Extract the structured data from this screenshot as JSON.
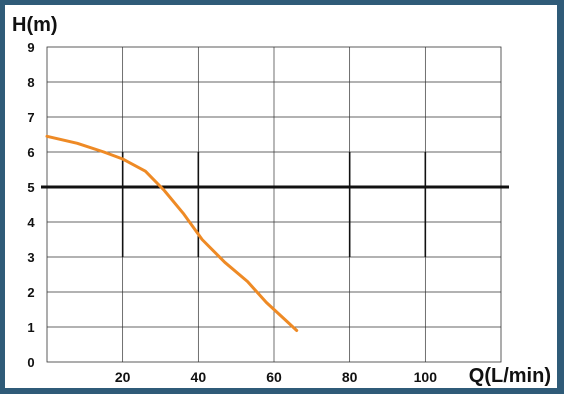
{
  "chart_data": {
    "type": "line",
    "title": "",
    "xlabel": "Q(L/min)",
    "ylabel": "H(m)",
    "xlim": [
      0,
      120
    ],
    "ylim": [
      0,
      9
    ],
    "x_ticks": [
      20,
      40,
      60,
      80,
      100
    ],
    "y_ticks": [
      0,
      1,
      2,
      3,
      4,
      5,
      6,
      7,
      8,
      9
    ],
    "grid": true,
    "legend": "none",
    "series": [
      {
        "x": [
          0,
          8,
          15,
          20,
          26,
          31,
          36,
          41,
          47,
          53,
          58,
          63,
          66
        ],
        "y": [
          6.45,
          6.25,
          6.0,
          5.8,
          5.45,
          4.9,
          4.25,
          3.5,
          2.85,
          2.3,
          1.7,
          1.2,
          0.9
        ],
        "color": "#ee8a25"
      }
    ],
    "reference_lines": [
      {
        "orientation": "horizontal",
        "value": 5.0,
        "color": "#111111"
      }
    ],
    "partial_gridlines": [
      {
        "x": 20,
        "y_from": 3,
        "y_to": 6
      },
      {
        "x": 40,
        "y_from": 3,
        "y_to": 6
      },
      {
        "x": 80,
        "y_from": 3,
        "y_to": 6
      },
      {
        "x": 100,
        "y_from": 3,
        "y_to": 6
      }
    ]
  }
}
